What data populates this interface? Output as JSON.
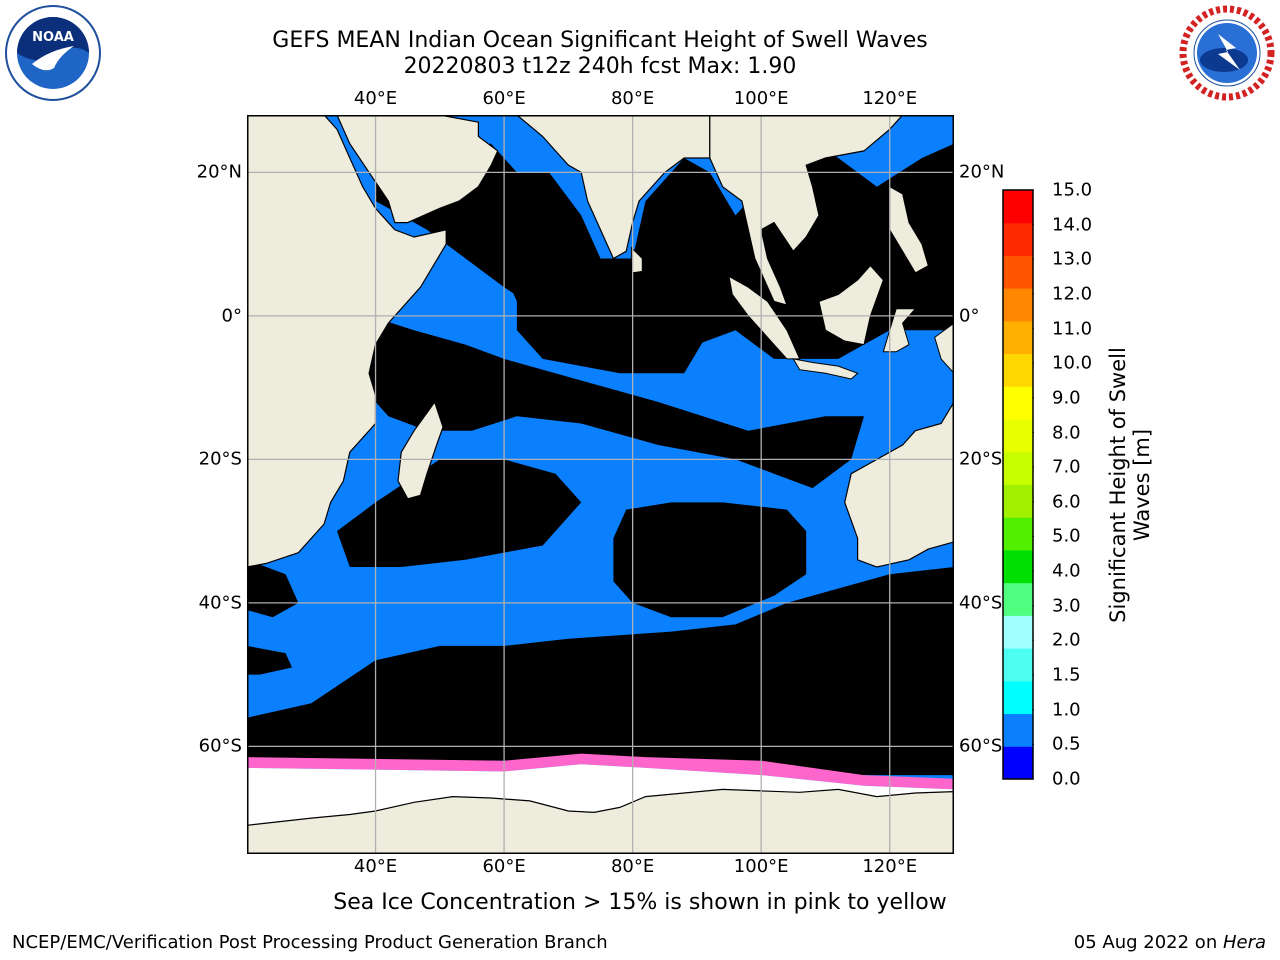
{
  "title": {
    "line1": "GEFS MEAN Indian Ocean Significant Height of Swell Waves",
    "line2": "20220803 t12z 240h fcst   Max: 1.90"
  },
  "logos": {
    "left": {
      "name": "noaa-logo",
      "text": "NOAA"
    },
    "right": {
      "name": "national-weather-service-logo",
      "text": "NATIONAL WEATHER SERVICE"
    }
  },
  "map": {
    "lon_ticks": [
      "40°E",
      "60°E",
      "80°E",
      "100°E",
      "120°E"
    ],
    "lat_ticks": [
      "20°N",
      "0°",
      "20°S",
      "40°S",
      "60°S"
    ],
    "extent": {
      "lon_min": 20,
      "lon_max": 130,
      "lat_min": -75,
      "lat_max": 28
    },
    "colors": {
      "land": "#eeecdc",
      "ice_area": "#ffffff",
      "grid": "#b0b0b0"
    }
  },
  "colorbar": {
    "label": "Significant Height of Swell Waves [m]",
    "ticks": [
      "0.0",
      "0.5",
      "1.0",
      "1.5",
      "2.0",
      "3.0",
      "4.0",
      "5.0",
      "6.0",
      "7.0",
      "8.0",
      "9.0",
      "10.0",
      "11.0",
      "12.0",
      "13.0",
      "14.0",
      "15.0"
    ],
    "colors": [
      "#0000ff",
      "#0a80ff",
      "#00ffff",
      "#4dfff0",
      "#a0ffff",
      "#50ff80",
      "#00e000",
      "#50f000",
      "#a0f000",
      "#c8ff00",
      "#e8ff00",
      "#ffff00",
      "#ffd700",
      "#ffb000",
      "#ff8800",
      "#ff5500",
      "#ff2a00",
      "#ff0000"
    ]
  },
  "caption": "Sea Ice Concentration > 15% is shown in pink to yellow",
  "footer": {
    "left": "NCEP/EMC/Verification Post Processing Product Generation Branch",
    "right_prefix": "05 Aug 2022 on ",
    "right_host": "Hera"
  }
}
